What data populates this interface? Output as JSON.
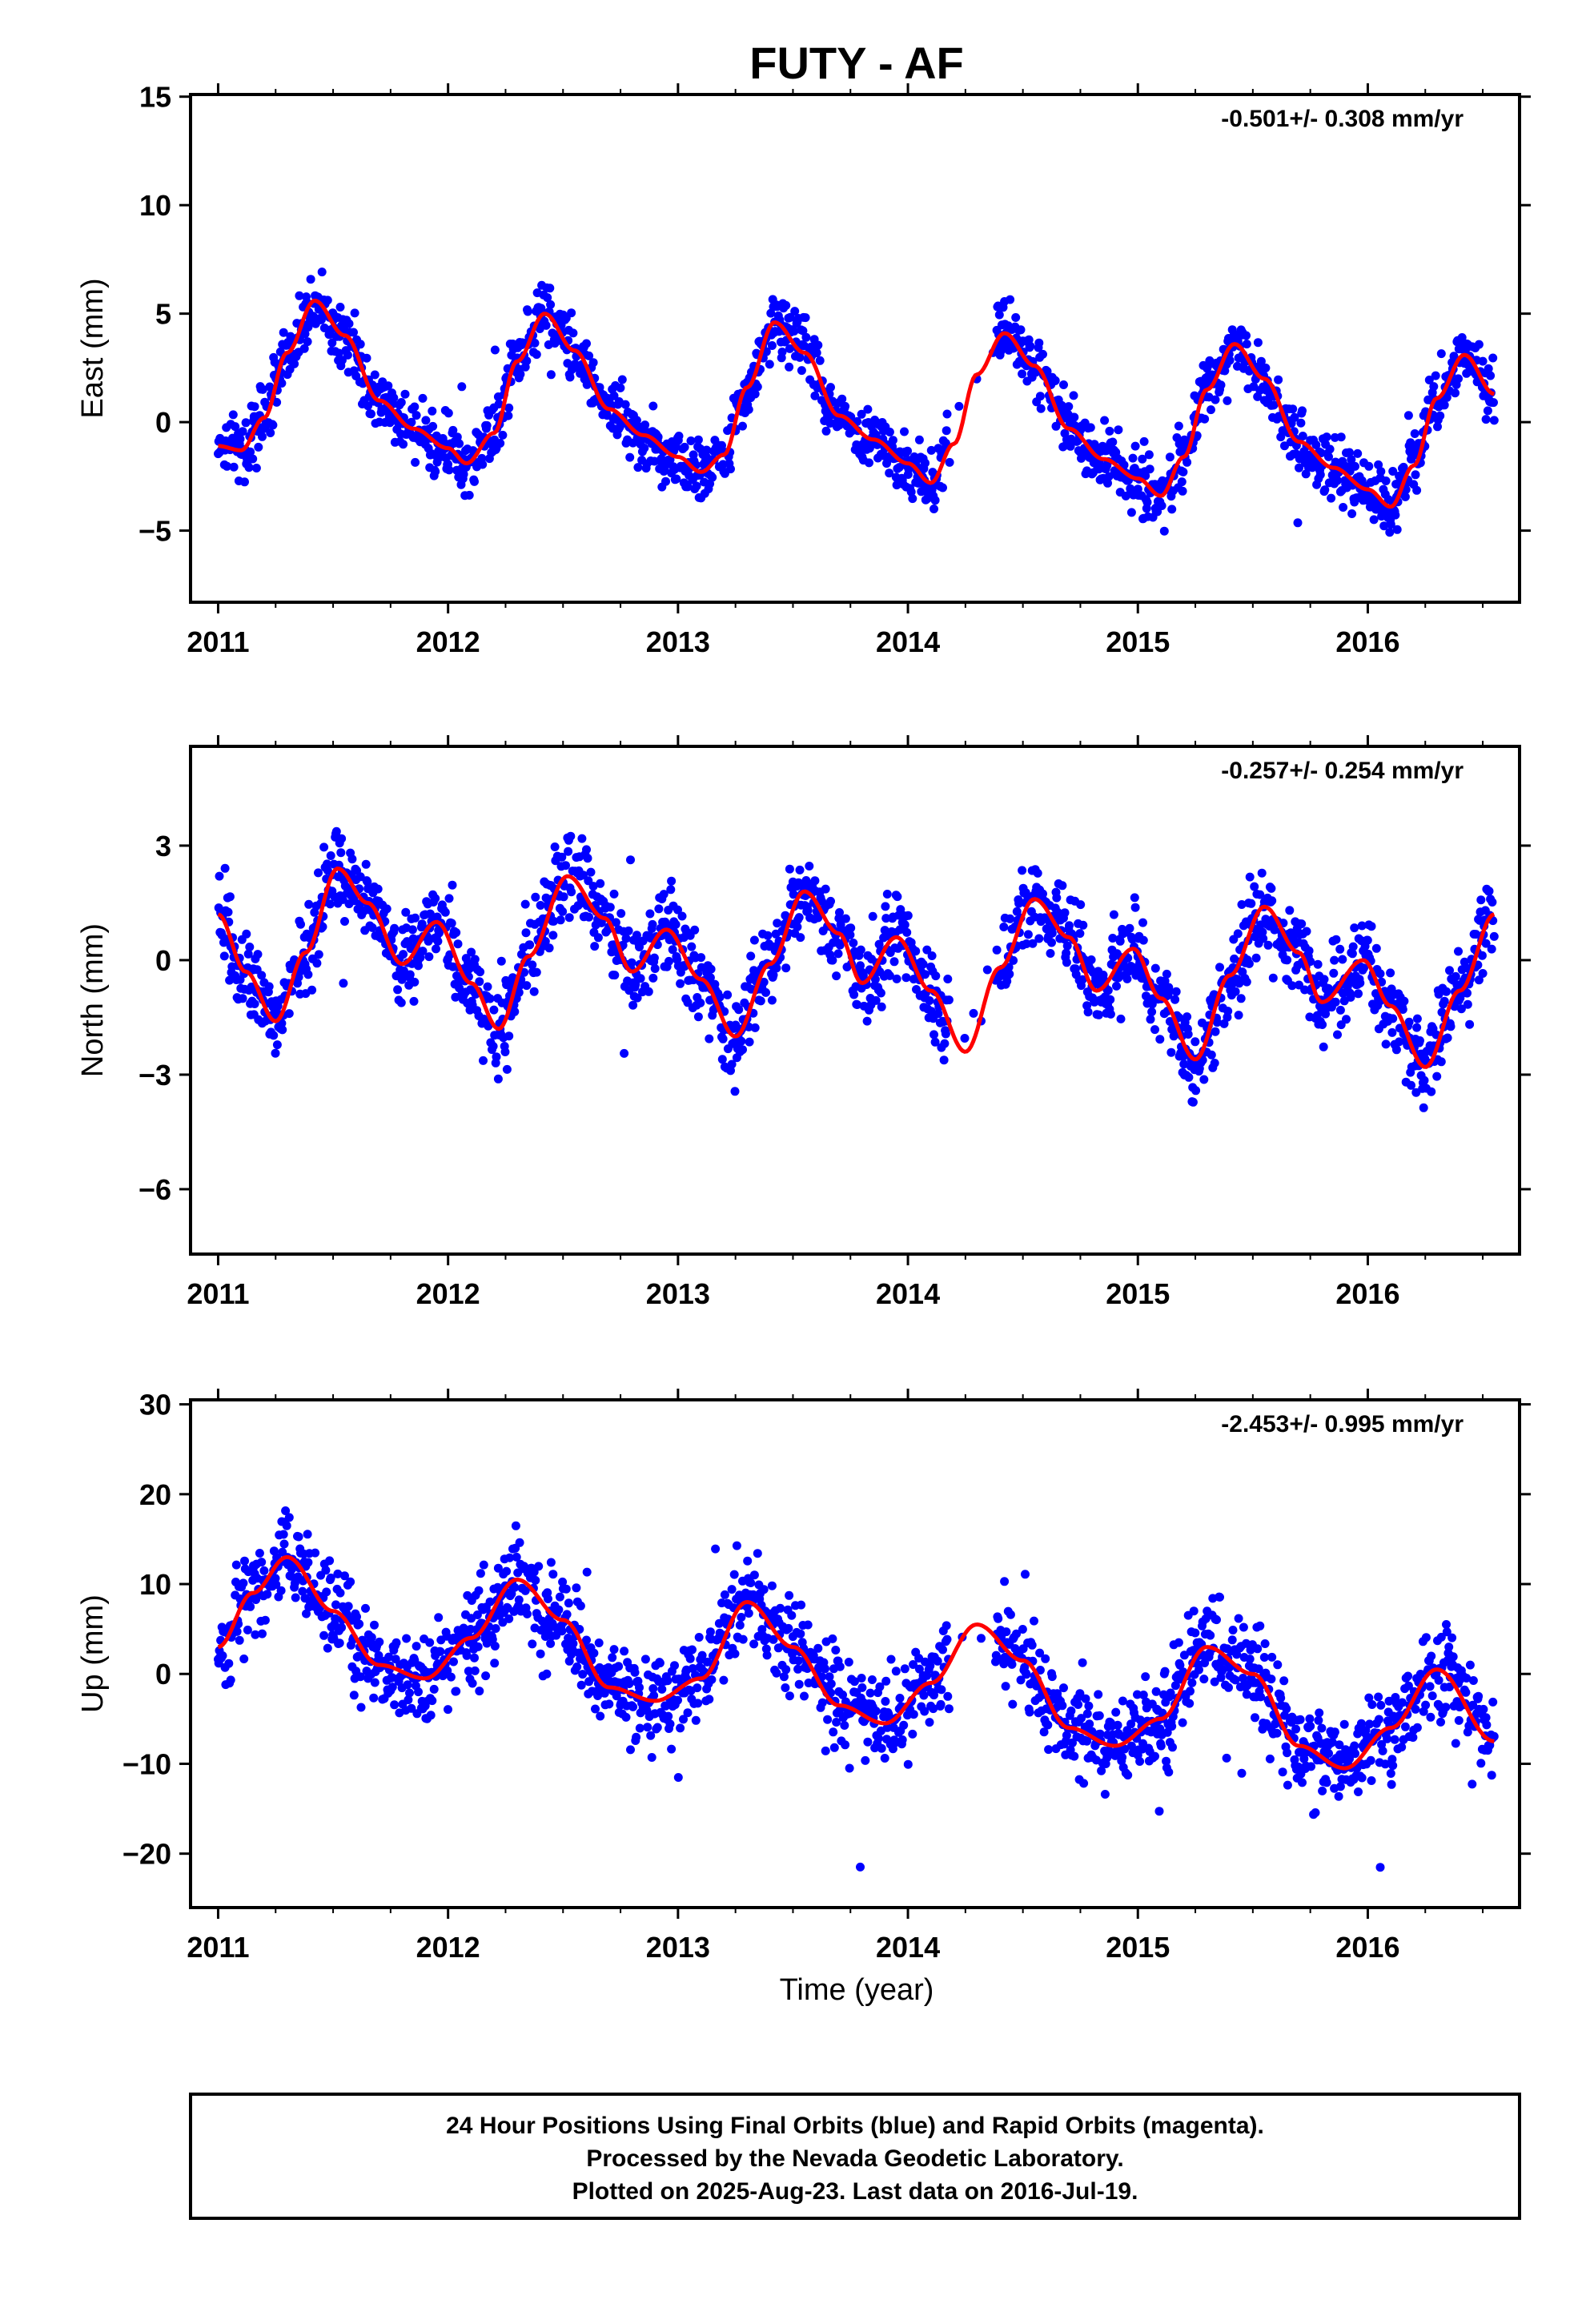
{
  "title": "FUTY - AF",
  "colors": {
    "data": "#0000ff",
    "model": "#ff0000",
    "frame": "#000000"
  },
  "xlabel": "Time (year)",
  "caption": [
    "24 Hour Positions Using Final Orbits (blue) and Rapid Orbits (magenta).",
    "Processed by the Nevada Geodetic Laboratory.",
    "Plotted on 2025-Aug-23. Last data on 2016-Jul-19."
  ],
  "chart_data": [
    {
      "type": "scatter",
      "ylabel": "East (mm)",
      "rate": "-0.501+/- 0.308 mm/yr",
      "xlim": [
        2010.88,
        2016.66
      ],
      "ylim": [
        -8.3,
        15.1
      ],
      "xticks": [
        2011,
        2012,
        2013,
        2014,
        2015,
        2016
      ],
      "yticks": [
        -5,
        0,
        5,
        10,
        15
      ],
      "model": {
        "name": "fit",
        "x": [
          2011.0,
          2011.1,
          2011.2,
          2011.3,
          2011.42,
          2011.55,
          2011.7,
          2011.85,
          2012.0,
          2012.08,
          2012.2,
          2012.3,
          2012.42,
          2012.55,
          2012.7,
          2012.85,
          2013.0,
          2013.1,
          2013.2,
          2013.3,
          2013.42,
          2013.55,
          2013.7,
          2013.85,
          2014.0,
          2014.1,
          2014.2,
          2014.3,
          2014.42,
          2014.55,
          2014.7,
          2014.85,
          2015.0,
          2015.1,
          2015.2,
          2015.3,
          2015.42,
          2015.55,
          2015.7,
          2015.85,
          2016.0,
          2016.1,
          2016.2,
          2016.3,
          2016.42,
          2016.55
        ],
        "y": [
          -1.1,
          -1.3,
          0.2,
          3.2,
          5.6,
          4.0,
          1.0,
          -0.3,
          -1.2,
          -1.9,
          -0.5,
          2.8,
          5.0,
          3.3,
          0.6,
          -0.6,
          -1.6,
          -2.3,
          -1.5,
          1.6,
          4.6,
          3.2,
          0.3,
          -0.8,
          -1.9,
          -2.8,
          -1.0,
          2.2,
          4.1,
          2.6,
          -0.3,
          -1.7,
          -2.6,
          -3.4,
          -1.6,
          1.5,
          3.6,
          2.0,
          -0.9,
          -2.1,
          -3.1,
          -3.9,
          -2.0,
          1.1,
          3.1,
          1.3
        ]
      },
      "noise": 1.3
    },
    {
      "type": "scatter",
      "ylabel": "North (mm)",
      "rate": "-0.257+/- 0.254 mm/yr",
      "xlim": [
        2010.88,
        2016.66
      ],
      "ylim": [
        -7.7,
        5.6
      ],
      "xticks": [
        2011,
        2012,
        2013,
        2014,
        2015,
        2016
      ],
      "yticks": [
        -6,
        -3,
        0,
        3
      ],
      "model": {
        "name": "fit",
        "x": [
          2011.0,
          2011.12,
          2011.25,
          2011.38,
          2011.52,
          2011.65,
          2011.8,
          2011.95,
          2012.1,
          2012.22,
          2012.35,
          2012.52,
          2012.68,
          2012.8,
          2012.95,
          2013.1,
          2013.25,
          2013.4,
          2013.55,
          2013.7,
          2013.8,
          2013.95,
          2014.1,
          2014.25,
          2014.4,
          2014.55,
          2014.7,
          2014.82,
          2014.98,
          2015.1,
          2015.25,
          2015.4,
          2015.55,
          2015.7,
          2015.8,
          2015.98,
          2016.1,
          2016.25,
          2016.4,
          2016.55
        ],
        "y": [
          1.2,
          -0.3,
          -1.6,
          0.2,
          2.4,
          1.5,
          -0.1,
          1.0,
          -0.6,
          -1.8,
          0.1,
          2.2,
          1.1,
          -0.3,
          0.8,
          -0.5,
          -2.0,
          -0.1,
          1.8,
          0.7,
          -0.6,
          0.6,
          -0.8,
          -2.4,
          -0.2,
          1.6,
          0.6,
          -0.8,
          0.3,
          -1.0,
          -2.6,
          -0.4,
          1.4,
          0.2,
          -1.1,
          0.0,
          -1.2,
          -2.8,
          -0.8,
          1.2
        ]
      },
      "noise": 1.0
    },
    {
      "type": "scatter",
      "ylabel": "Up (mm)",
      "rate": "-2.453+/- 0.995 mm/yr",
      "xlim": [
        2010.88,
        2016.66
      ],
      "ylim": [
        -26,
        30.5
      ],
      "xticks": [
        2011,
        2012,
        2013,
        2014,
        2015,
        2016
      ],
      "yticks": [
        -20,
        -10,
        0,
        10,
        20,
        30
      ],
      "model": {
        "name": "fit",
        "x": [
          2011.0,
          2011.15,
          2011.3,
          2011.5,
          2011.7,
          2011.9,
          2012.1,
          2012.3,
          2012.5,
          2012.7,
          2012.9,
          2013.1,
          2013.3,
          2013.5,
          2013.7,
          2013.9,
          2014.1,
          2014.3,
          2014.5,
          2014.7,
          2014.9,
          2015.1,
          2015.3,
          2015.5,
          2015.7,
          2015.9,
          2016.1,
          2016.3,
          2016.55
        ],
        "y": [
          3,
          9,
          13,
          7,
          1,
          -0.5,
          4,
          10.5,
          6,
          -1.5,
          -3,
          -0.5,
          8,
          3,
          -3.5,
          -5.5,
          -1,
          5.5,
          1.5,
          -6,
          -8,
          -5,
          3,
          0,
          -8,
          -10.5,
          -6,
          0.5,
          -7.5
        ]
      },
      "noise": 4.6
    }
  ]
}
